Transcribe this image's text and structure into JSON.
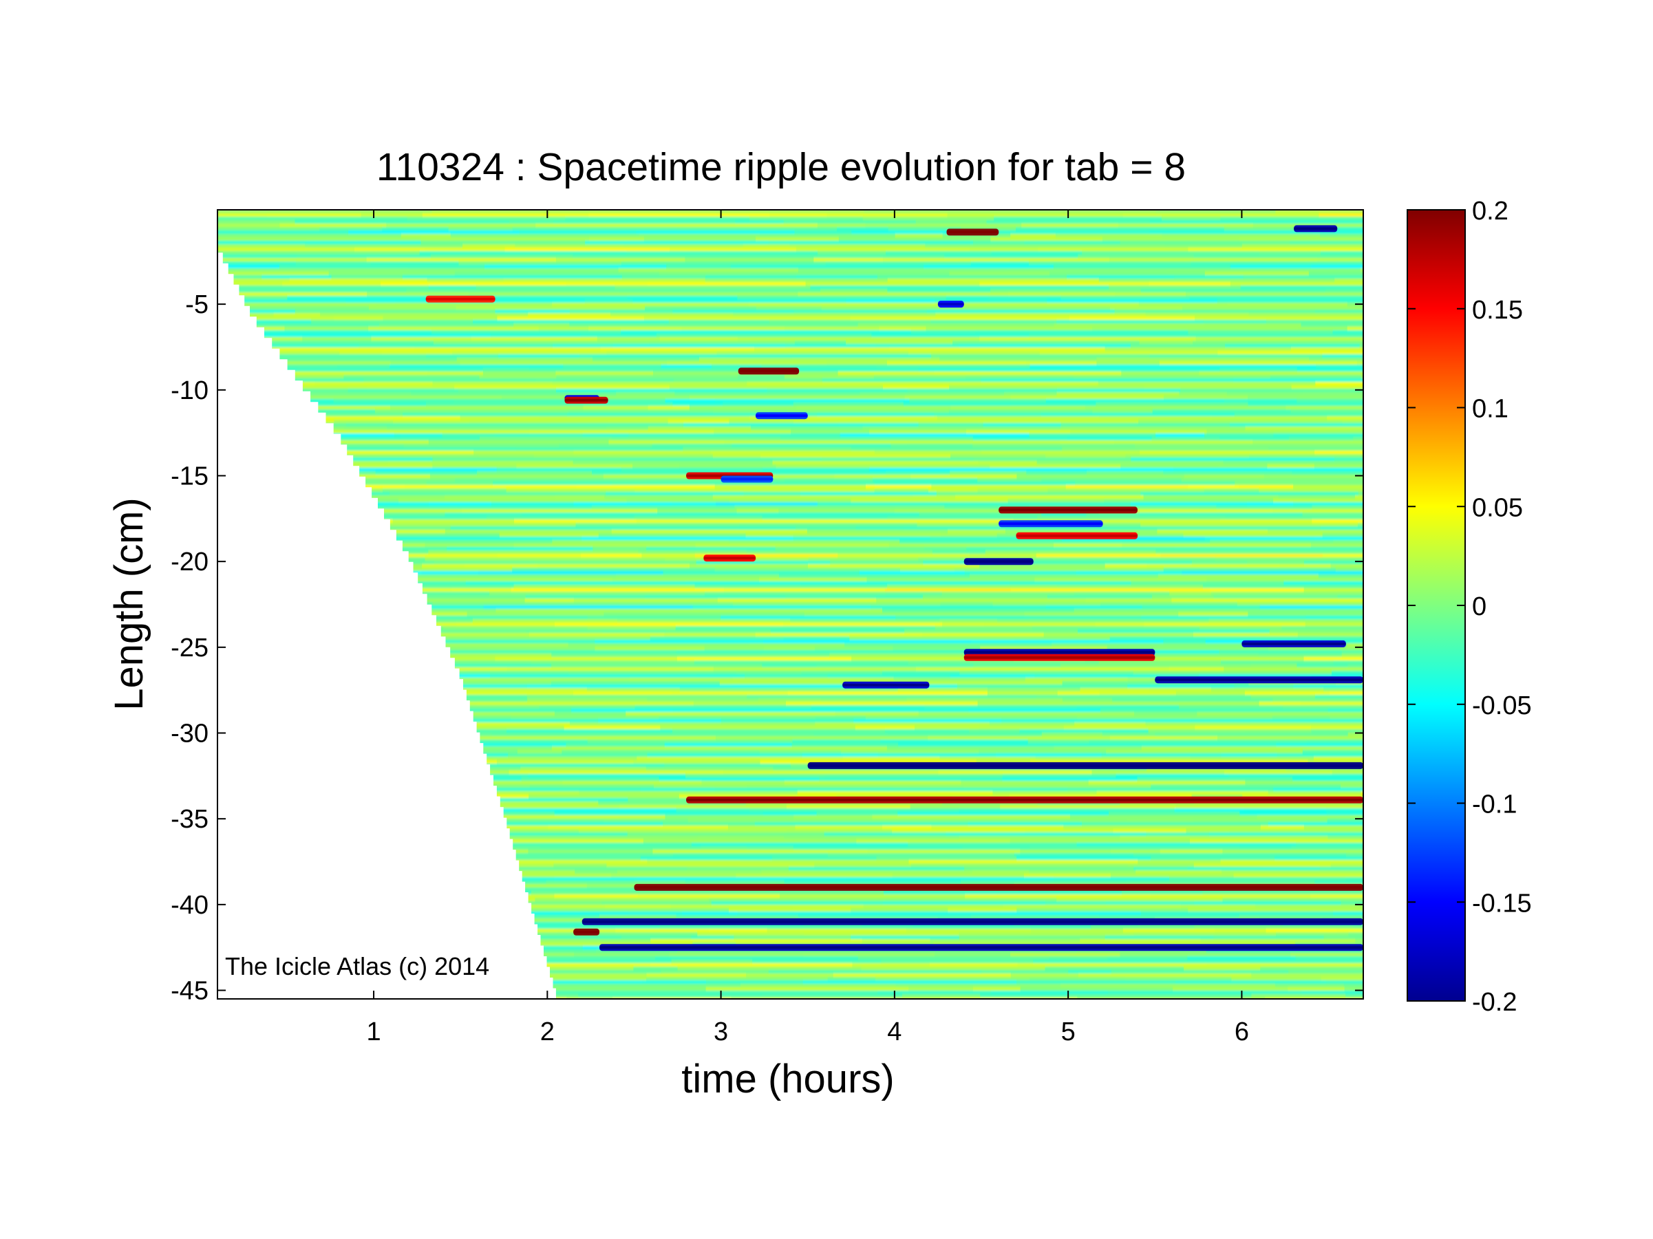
{
  "chart_data": {
    "type": "heatmap",
    "title": "110324 : Spacetime ripple evolution for tab = 8",
    "xlabel": "time (hours)",
    "ylabel": "Length (cm)",
    "xlim": [
      0.1,
      6.7
    ],
    "ylim": [
      -45.5,
      0.5
    ],
    "xticks": [
      1,
      2,
      3,
      4,
      5,
      6
    ],
    "xtick_labels": [
      "1",
      "2",
      "3",
      "4",
      "5",
      "6"
    ],
    "yticks": [
      -5,
      -10,
      -15,
      -20,
      -25,
      -30,
      -35,
      -40,
      -45
    ],
    "ytick_labels": [
      "-5",
      "-10",
      "-15",
      "-20",
      "-25",
      "-30",
      "-35",
      "-40",
      "-45"
    ],
    "colorbar": {
      "colormap": "jet",
      "range": [
        -0.2,
        0.2
      ],
      "ticks": [
        0.2,
        0.15,
        0.1,
        0.05,
        0,
        -0.05,
        -0.1,
        -0.15,
        -0.2
      ],
      "tick_labels": [
        "0.2",
        "0.15",
        "0.1",
        "0.05",
        "0",
        "-0.05",
        "-0.1",
        "-0.15",
        "-0.2"
      ]
    },
    "data_start_boundary": [
      {
        "time": 0.1,
        "length": -2
      },
      {
        "time": 0.3,
        "length": -6
      },
      {
        "time": 0.8,
        "length": -13
      },
      {
        "time": 1.2,
        "length": -20
      },
      {
        "time": 1.5,
        "length": -27
      },
      {
        "time": 1.75,
        "length": -35
      },
      {
        "time": 2.05,
        "length": -45.5
      }
    ],
    "features": [
      {
        "length": -0.8,
        "t_start": 4.3,
        "t_end": 4.6,
        "value": 0.2
      },
      {
        "length": -0.6,
        "t_start": 6.3,
        "t_end": 6.55,
        "value": -0.18
      },
      {
        "length": -4.7,
        "t_start": 1.3,
        "t_end": 1.7,
        "value": 0.14
      },
      {
        "length": -5.0,
        "t_start": 4.25,
        "t_end": 4.4,
        "value": -0.15
      },
      {
        "length": -8.9,
        "t_start": 3.1,
        "t_end": 3.45,
        "value": 0.2
      },
      {
        "length": -10.5,
        "t_start": 2.1,
        "t_end": 2.3,
        "value": -0.16
      },
      {
        "length": -10.6,
        "t_start": 2.1,
        "t_end": 2.35,
        "value": 0.17
      },
      {
        "length": -11.5,
        "t_start": 3.2,
        "t_end": 3.5,
        "value": -0.13
      },
      {
        "length": -15.0,
        "t_start": 2.8,
        "t_end": 3.3,
        "value": 0.16
      },
      {
        "length": -15.2,
        "t_start": 3.0,
        "t_end": 3.3,
        "value": -0.12
      },
      {
        "length": -17.0,
        "t_start": 4.6,
        "t_end": 5.4,
        "value": 0.19
      },
      {
        "length": -17.8,
        "t_start": 4.6,
        "t_end": 5.2,
        "value": -0.13
      },
      {
        "length": -18.5,
        "t_start": 4.7,
        "t_end": 5.4,
        "value": 0.15
      },
      {
        "length": -20.0,
        "t_start": 4.4,
        "t_end": 4.8,
        "value": -0.19
      },
      {
        "length": -19.8,
        "t_start": 2.9,
        "t_end": 3.2,
        "value": 0.15
      },
      {
        "length": -24.8,
        "t_start": 6.0,
        "t_end": 6.6,
        "value": -0.17
      },
      {
        "length": -25.3,
        "t_start": 4.4,
        "t_end": 5.5,
        "value": -0.18
      },
      {
        "length": -25.6,
        "t_start": 4.4,
        "t_end": 5.5,
        "value": 0.16
      },
      {
        "length": -26.9,
        "t_start": 5.5,
        "t_end": 6.7,
        "value": -0.18
      },
      {
        "length": -27.2,
        "t_start": 3.7,
        "t_end": 4.2,
        "value": -0.17
      },
      {
        "length": -31.9,
        "t_start": 3.5,
        "t_end": 6.7,
        "value": -0.2
      },
      {
        "length": -33.9,
        "t_start": 2.8,
        "t_end": 6.7,
        "value": 0.18
      },
      {
        "length": -39.0,
        "t_start": 2.5,
        "t_end": 6.7,
        "value": 0.2
      },
      {
        "length": -41.0,
        "t_start": 2.2,
        "t_end": 6.7,
        "value": -0.19
      },
      {
        "length": -41.6,
        "t_start": 2.15,
        "t_end": 2.3,
        "value": 0.2
      },
      {
        "length": -42.5,
        "t_start": 2.3,
        "t_end": 6.7,
        "value": -0.18
      }
    ],
    "annotation": "The Icicle Atlas (c) 2014"
  }
}
